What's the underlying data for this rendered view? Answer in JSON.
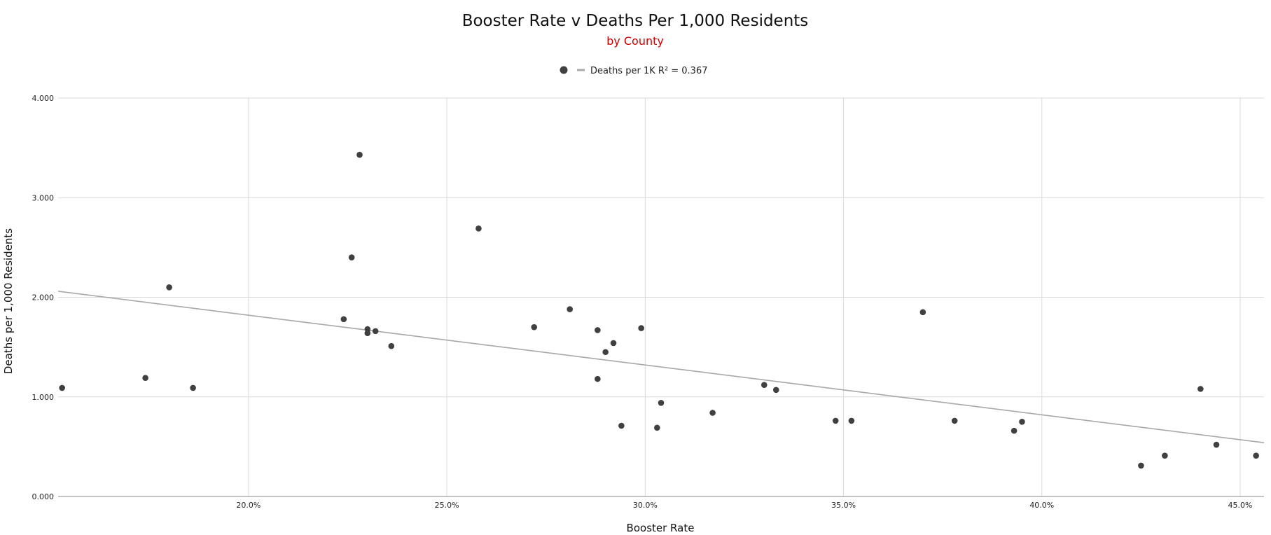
{
  "chart_data": {
    "type": "scatter",
    "title": "Booster Rate v Deaths Per 1,000 Residents",
    "subtitle": "by County",
    "xlabel": "Booster Rate",
    "ylabel": "Deaths per 1,000 Residents",
    "xlim": [
      0.152,
      0.456
    ],
    "ylim": [
      0,
      4
    ],
    "x_ticks": [
      0.2,
      0.25,
      0.3,
      0.35,
      0.4,
      0.45
    ],
    "x_tick_labels": [
      "20.0%",
      "25.0%",
      "30.0%",
      "35.0%",
      "40.0%",
      "45.0%"
    ],
    "y_ticks": [
      0,
      1,
      2,
      3,
      4
    ],
    "y_tick_labels": [
      "0.000",
      "1.000",
      "2.000",
      "3.000",
      "4.000"
    ],
    "grid": true,
    "legend": {
      "position": "top",
      "label": "Deaths per 1K R² = 0.367"
    },
    "colors": {
      "points": "#404040",
      "trendline": "#a8a8a8",
      "grid": "#d9d9d9",
      "axis": "#888888",
      "subtitle": "#cc0000"
    },
    "series": [
      {
        "name": "Deaths per 1K",
        "points": [
          [
            0.153,
            1.09
          ],
          [
            0.174,
            1.19
          ],
          [
            0.18,
            2.1
          ],
          [
            0.186,
            1.09
          ],
          [
            0.224,
            1.78
          ],
          [
            0.226,
            2.4
          ],
          [
            0.228,
            3.43
          ],
          [
            0.23,
            1.68
          ],
          [
            0.23,
            1.64
          ],
          [
            0.232,
            1.66
          ],
          [
            0.236,
            1.51
          ],
          [
            0.258,
            2.69
          ],
          [
            0.272,
            1.7
          ],
          [
            0.281,
            1.88
          ],
          [
            0.288,
            1.67
          ],
          [
            0.288,
            1.18
          ],
          [
            0.29,
            1.45
          ],
          [
            0.292,
            1.54
          ],
          [
            0.294,
            0.71
          ],
          [
            0.299,
            1.69
          ],
          [
            0.303,
            0.69
          ],
          [
            0.304,
            0.94
          ],
          [
            0.317,
            0.84
          ],
          [
            0.33,
            1.12
          ],
          [
            0.333,
            1.07
          ],
          [
            0.348,
            0.76
          ],
          [
            0.352,
            0.76
          ],
          [
            0.37,
            1.85
          ],
          [
            0.378,
            0.76
          ],
          [
            0.393,
            0.66
          ],
          [
            0.395,
            0.75
          ],
          [
            0.425,
            0.31
          ],
          [
            0.431,
            0.41
          ],
          [
            0.44,
            1.08
          ],
          [
            0.444,
            0.52
          ],
          [
            0.454,
            0.41
          ]
        ]
      }
    ],
    "trendline": {
      "x": [
        0.152,
        0.456
      ],
      "y": [
        2.06,
        0.54
      ]
    }
  }
}
